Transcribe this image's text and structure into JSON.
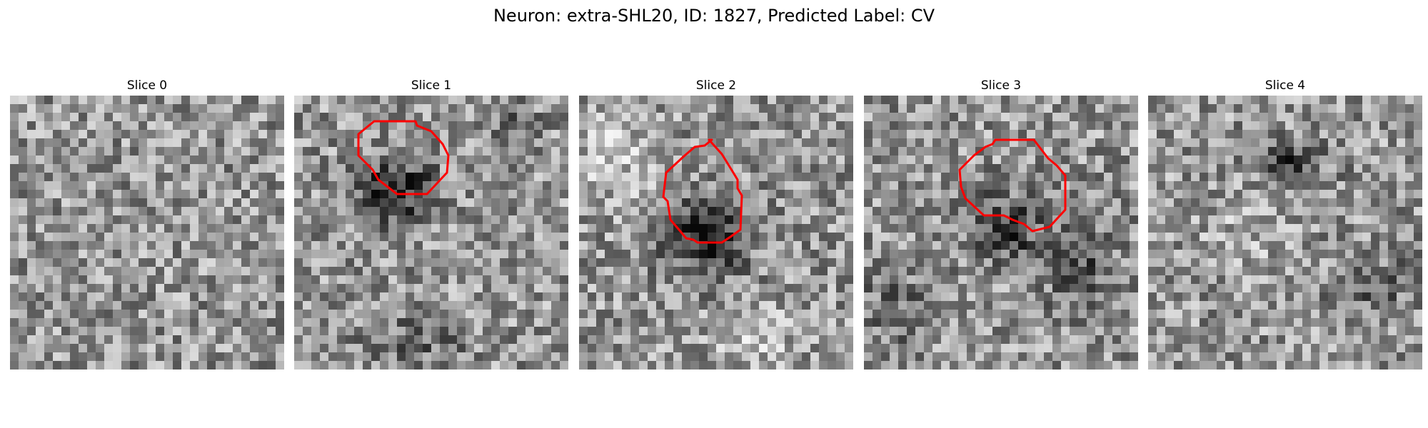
{
  "figure": {
    "title": "Neuron: extra-SHL20, ID: 1827, Predicted Label: CV",
    "contour_color": "#ff0000",
    "colormap": "grayscale"
  },
  "slices": [
    {
      "title": "Slice 0",
      "has_contour": false
    },
    {
      "title": "Slice 1",
      "has_contour": true
    },
    {
      "title": "Slice 2",
      "has_contour": true
    },
    {
      "title": "Slice 3",
      "has_contour": true
    },
    {
      "title": "Slice 4",
      "has_contour": false
    }
  ]
}
